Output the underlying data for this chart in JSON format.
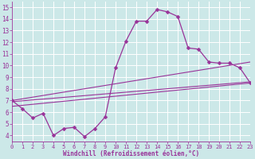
{
  "xlabel": "Windchill (Refroidissement éolien,°C)",
  "xlim": [
    0,
    23
  ],
  "ylim": [
    3.5,
    15.5
  ],
  "yticks": [
    4,
    5,
    6,
    7,
    8,
    9,
    10,
    11,
    12,
    13,
    14,
    15
  ],
  "xticks": [
    0,
    1,
    2,
    3,
    4,
    5,
    6,
    7,
    8,
    9,
    10,
    11,
    12,
    13,
    14,
    15,
    16,
    17,
    18,
    19,
    20,
    21,
    22,
    23
  ],
  "bg_color": "#cce8e8",
  "grid_color": "#ffffff",
  "line_color": "#993399",
  "markersize": 2.5,
  "line1_x": [
    0,
    1,
    2,
    3,
    4,
    5,
    6,
    7,
    8,
    9,
    10,
    11,
    12,
    13,
    14,
    15,
    16,
    17,
    18,
    19,
    20,
    21,
    22,
    23
  ],
  "line1_y": [
    7.0,
    6.3,
    5.5,
    5.9,
    4.0,
    4.6,
    4.7,
    3.9,
    4.6,
    5.6,
    9.8,
    12.1,
    13.8,
    13.8,
    14.8,
    14.6,
    14.2,
    11.5,
    11.4,
    10.3,
    10.2,
    10.2,
    9.8,
    8.5
  ],
  "line2_x": [
    0,
    23
  ],
  "line2_y": [
    6.9,
    8.6
  ],
  "line3_x": [
    0,
    23
  ],
  "line3_y": [
    7.0,
    10.3
  ],
  "line4_x": [
    0,
    23
  ],
  "line4_y": [
    6.5,
    8.5
  ]
}
